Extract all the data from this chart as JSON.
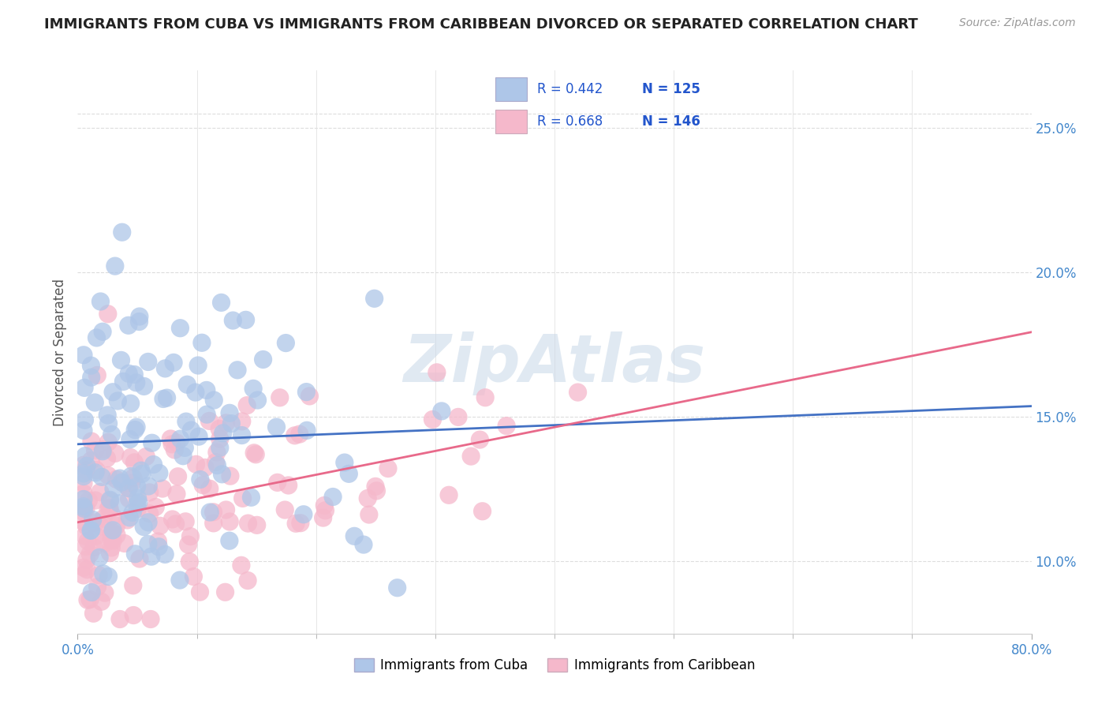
{
  "title": "IMMIGRANTS FROM CUBA VS IMMIGRANTS FROM CARIBBEAN DIVORCED OR SEPARATED CORRELATION CHART",
  "source": "Source: ZipAtlas.com",
  "ylabel": "Divorced or Separated",
  "series": [
    {
      "label": "Immigrants from Cuba",
      "color": "#aec6e8",
      "edge_color": "#7aafd4",
      "R": 0.442,
      "N": 125,
      "line_color": "#4472c4"
    },
    {
      "label": "Immigrants from Caribbean",
      "color": "#f5b8cb",
      "edge_color": "#e87fa0",
      "R": 0.668,
      "N": 146,
      "line_color": "#e8698a"
    }
  ],
  "xlim": [
    0.0,
    0.8
  ],
  "ylim": [
    0.075,
    0.27
  ],
  "xtick_positions": [
    0.0,
    0.8
  ],
  "xtick_labels": [
    "0.0%",
    "80.0%"
  ],
  "xtick_minor_positions": [
    0.1,
    0.2,
    0.3,
    0.4,
    0.5,
    0.6,
    0.7
  ],
  "yticks_right": [
    0.1,
    0.15,
    0.2,
    0.25
  ],
  "watermark": "ZipAtlas",
  "watermark_color": "#c8d8e8",
  "background_color": "#ffffff",
  "grid_color": "#dddddd",
  "title_fontsize": 13,
  "legend_R_color": "#2255cc",
  "legend_N_color": "#2255cc",
  "right_axis_color": "#4488cc"
}
